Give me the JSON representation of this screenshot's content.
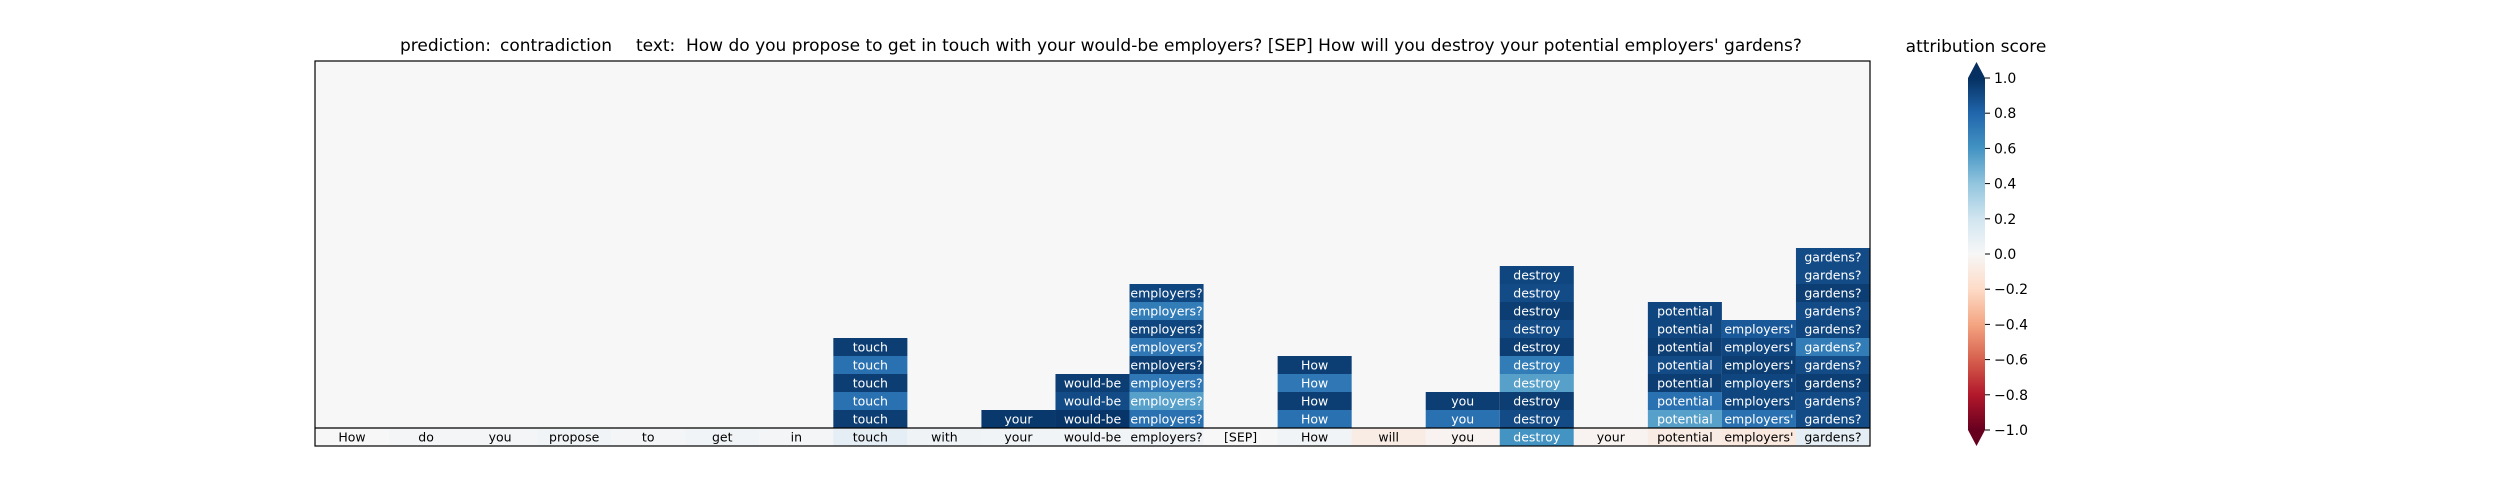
{
  "title": {
    "prediction_label": "prediction:",
    "prediction_value": "contradiction",
    "text_label": "text:",
    "text_value": "How do you propose to get in touch with your would-be employers? [SEP] How will you destroy your potential employers' gardens?"
  },
  "colorbar": {
    "title": "attribution score",
    "ticks": [
      "1.0",
      "0.8",
      "0.6",
      "0.4",
      "0.2",
      "0.0",
      "−0.2",
      "−0.4",
      "−0.6",
      "−0.8",
      "−1.0"
    ],
    "tick_values": [
      1.0,
      0.8,
      0.6,
      0.4,
      0.2,
      0.0,
      -0.2,
      -0.4,
      -0.6,
      -0.8,
      -1.0
    ],
    "range": [
      -1,
      1
    ],
    "colormap": "RdBu",
    "extend": "both"
  },
  "chart_data": {
    "type": "heatmap",
    "grid": false,
    "tokens": [
      "How",
      "do",
      "you",
      "propose",
      "to",
      "get",
      "in",
      "touch",
      "with",
      "your",
      "would-be",
      "employers?",
      "[SEP]",
      "How",
      "will",
      "you",
      "destroy",
      "your",
      "potential",
      "employers'",
      "gardens?"
    ],
    "base_row": [
      0.0,
      0.02,
      0.02,
      0.03,
      0.02,
      0.03,
      0.02,
      0.1,
      0.04,
      0.03,
      0.03,
      0.04,
      0.0,
      0.03,
      -0.08,
      -0.03,
      0.6,
      -0.03,
      -0.08,
      -0.1,
      0.1
    ],
    "stacks": [
      {
        "token_index": 7,
        "values": [
          0.95,
          0.75,
          0.95,
          0.75,
          0.95
        ]
      },
      {
        "token_index": 9,
        "values": [
          0.97
        ]
      },
      {
        "token_index": 10,
        "values": [
          0.95,
          0.9,
          0.98
        ]
      },
      {
        "token_index": 11,
        "values": [
          0.92,
          0.7,
          0.92,
          0.72,
          0.95,
          0.72,
          0.55,
          0.75
        ]
      },
      {
        "token_index": 13,
        "values": [
          0.95,
          0.72,
          0.95,
          0.75
        ]
      },
      {
        "token_index": 15,
        "values": [
          0.95,
          0.75
        ]
      },
      {
        "token_index": 16,
        "values": [
          0.92,
          0.9,
          0.95,
          0.9,
          0.95,
          0.7,
          0.55,
          0.95,
          0.9
        ]
      },
      {
        "token_index": 18,
        "values": [
          0.92,
          0.92,
          0.95,
          0.9,
          0.95,
          0.75,
          0.55
        ]
      },
      {
        "token_index": 19,
        "values": [
          0.85,
          0.92,
          0.95,
          0.92,
          0.92,
          0.75
        ]
      },
      {
        "token_index": 20,
        "values": [
          0.9,
          0.9,
          0.95,
          0.9,
          0.92,
          0.7,
          0.9,
          0.95,
          0.9,
          0.9
        ]
      }
    ]
  }
}
